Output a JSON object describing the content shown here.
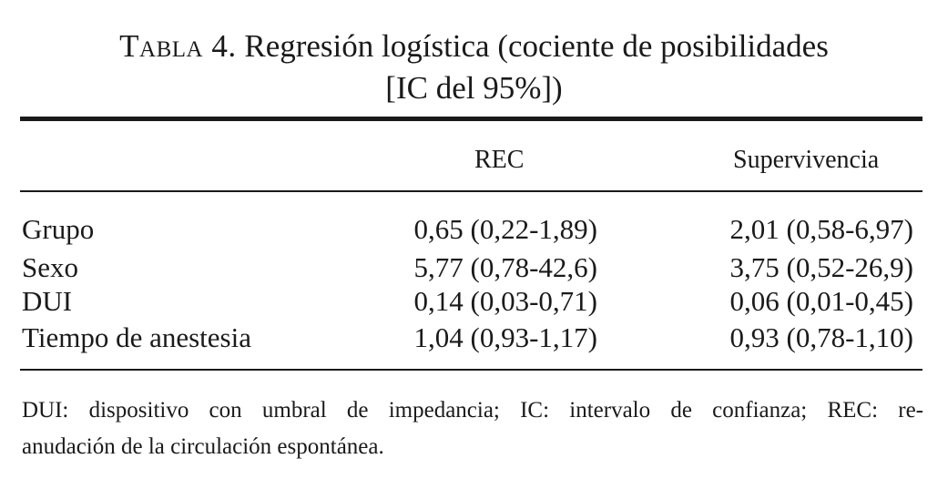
{
  "table": {
    "label": "Tabla 4.",
    "title_line1": "Regresión logística (cociente de posibilidades",
    "title_line2": "[IC del 95%])",
    "columns": [
      "REC",
      "Supervivencia"
    ],
    "rows": [
      {
        "label": "Grupo",
        "rec": "0,65 (0,22-1,89)",
        "supervivencia": "2,01 (0,58-6,97)"
      },
      {
        "label": "Sexo",
        "rec": "5,77 (0,78-42,6)",
        "supervivencia": "3,75 (0,52-26,9)"
      },
      {
        "label": "DUI",
        "rec": "0,14 (0,03-0,71)",
        "supervivencia": "0,06 (0,01-0,45)"
      },
      {
        "label": "Tiempo de anestesia",
        "rec": "1,04 (0,93-1,17)",
        "supervivencia": "0,93 (0,78-1,10)"
      }
    ],
    "footnote_line1": "DUI: dispositivo con umbral de impedancia; IC: intervalo de confianza; REC: re-",
    "footnote_line2": "anudación de la circulación espontánea."
  }
}
